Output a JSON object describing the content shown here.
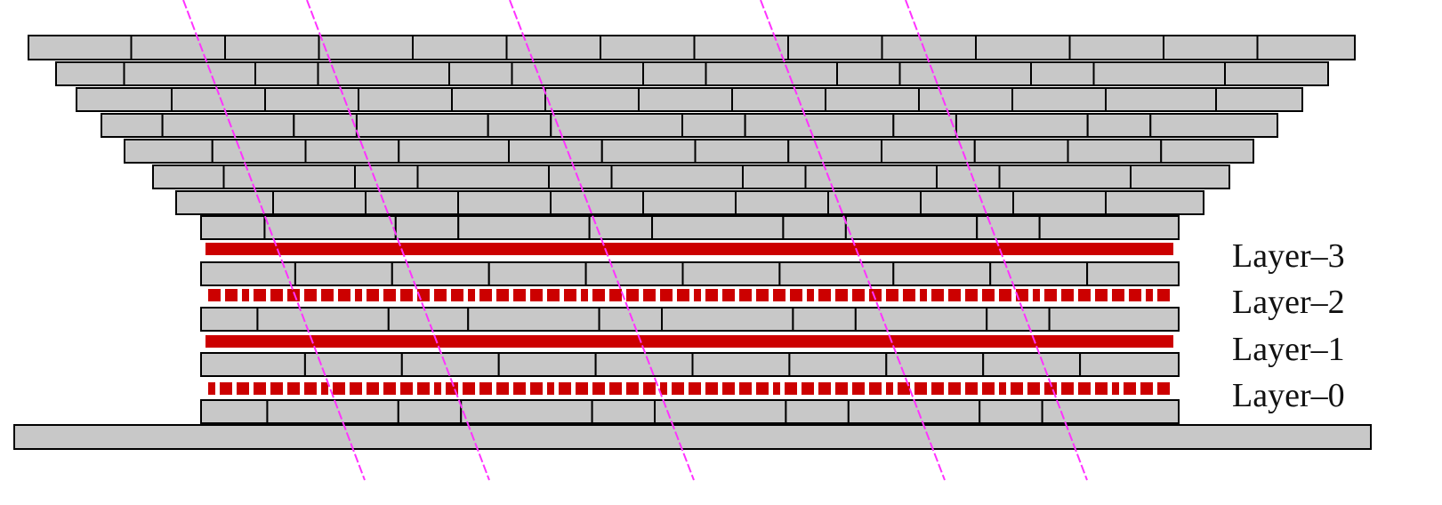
{
  "diagram": {
    "layers": [
      {
        "label": "Layer–3",
        "style": "solid"
      },
      {
        "label": "Layer–2",
        "style": "segmented"
      },
      {
        "label": "Layer–1",
        "style": "solid"
      },
      {
        "label": "Layer–0",
        "style": "segmented"
      }
    ],
    "brick_rows": 13,
    "tracks": 5,
    "colors": {
      "brick_fill": "#c8c8c8",
      "brick_stroke": "#000000",
      "layer": "#cc0000",
      "track": "#ff33ff",
      "background": "#ffffff"
    }
  }
}
